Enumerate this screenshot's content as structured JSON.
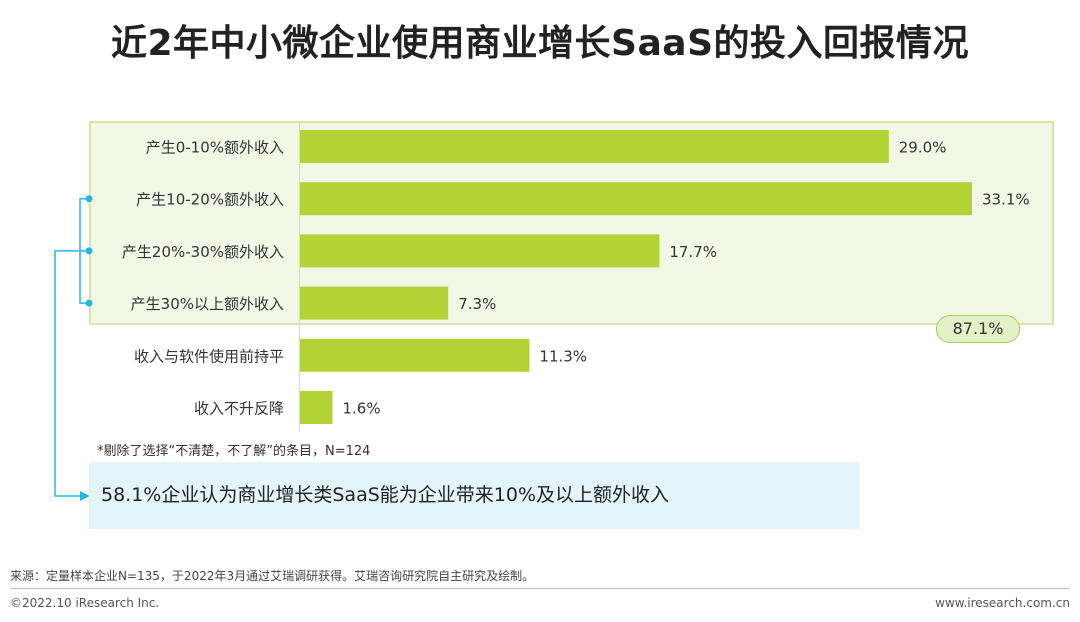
{
  "title": "近2年中小微企业使用商业增长SaaS的投入回报情况",
  "chart_data": {
    "type": "bar",
    "orientation": "horizontal",
    "categories": [
      "产生0-10%额外收入",
      "产生10-20%额外收入",
      "产生20%-30%额外收入",
      "产生30%以上额外收入",
      "收入与软件使用前持平",
      "收入不升反降"
    ],
    "values": [
      29.0,
      33.1,
      17.7,
      7.3,
      11.3,
      1.6
    ],
    "value_labels": [
      "29.0%",
      "33.1%",
      "17.7%",
      "7.3%",
      "11.3%",
      "1.6%"
    ],
    "bar_color": "#b2d235",
    "xlim": [
      0,
      33.1
    ],
    "grouped_total_label": "87.1%"
  },
  "note": "*剔除了选择“不清楚，不了解”的条目，N=124",
  "callout": "58.1%企业认为商业增长类SaaS能为企业带来10%及以上额外收入",
  "source": "来源：定量样本企业N=135，于2022年3月通过艾瑞调研获得。艾瑞咨询研究院自主研究及绘制。",
  "footer": {
    "copyright": "©2022.10 iResearch Inc.",
    "website": "www.iresearch.com.cn"
  },
  "colors": {
    "bar": "#b2d235",
    "highlight_bg": "#f3f8e6",
    "bracket": "#29b6e6",
    "callout_bg": "#e3f4fa"
  }
}
